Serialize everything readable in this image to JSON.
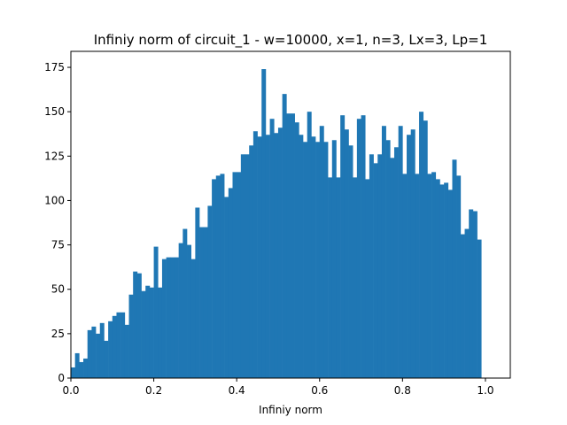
{
  "chart_data": {
    "type": "bar",
    "title": "Infiniy norm of circuit_1 - w=10000, x=1, n=3, Lx=3, Lp=1",
    "xlabel": "Infiniy norm",
    "ylabel": "",
    "xlim": [
      0.0,
      1.06
    ],
    "ylim": [
      0,
      184
    ],
    "xticks": [
      "0.0",
      "0.2",
      "0.4",
      "0.6",
      "0.8",
      "1.0"
    ],
    "yticks": [
      "0",
      "25",
      "50",
      "75",
      "100",
      "125",
      "150",
      "175"
    ],
    "bin_width": 0.01,
    "x_start": 0.0,
    "values": [
      6,
      14,
      9,
      11,
      27,
      29,
      25,
      31,
      21,
      32,
      35,
      37,
      37,
      30,
      47,
      60,
      59,
      49,
      52,
      51,
      74,
      51,
      67,
      68,
      68,
      68,
      76,
      84,
      75,
      67,
      96,
      85,
      85,
      97,
      112,
      114,
      115,
      102,
      107,
      116,
      116,
      126,
      126,
      131,
      139,
      136,
      174,
      137,
      146,
      138,
      141,
      160,
      149,
      149,
      144,
      137,
      133,
      150,
      136,
      133,
      142,
      133,
      113,
      134,
      113,
      148,
      140,
      131,
      113,
      146,
      148,
      112,
      126,
      121,
      126,
      142,
      134,
      124,
      130,
      142,
      115,
      137,
      140,
      115,
      150,
      145,
      115,
      116,
      112,
      109,
      110,
      106,
      123,
      114,
      81,
      84,
      95,
      94,
      78
    ],
    "bar_color": "#1f77b4",
    "grid": false
  }
}
